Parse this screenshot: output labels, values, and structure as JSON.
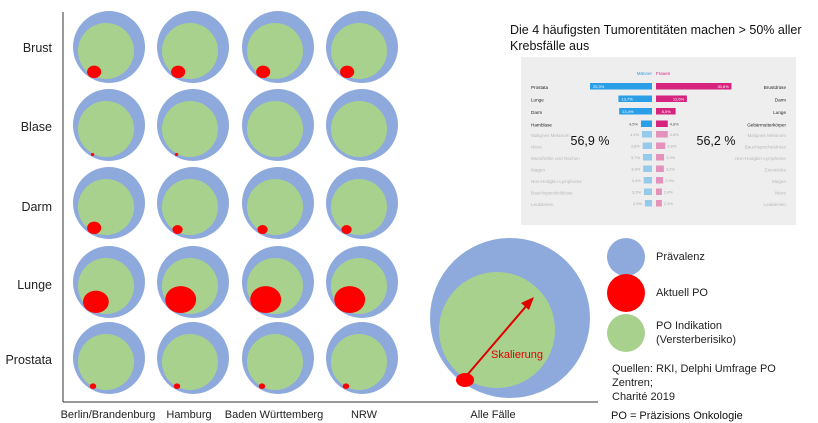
{
  "rows": [
    "Brust",
    "Blase",
    "Darm",
    "Lunge",
    "Prostata"
  ],
  "columns": [
    "Berlin/Brandenburg",
    "Hamburg",
    "Baden Württemberg",
    "NRW"
  ],
  "all_cases_label": "Alle Fälle",
  "scaling_label": "Skalierung",
  "aktuell_po_levels": [
    [
      0.22,
      0.22,
      0.22,
      0.22
    ],
    [
      0.05,
      0.05,
      0.0,
      0.0
    ],
    [
      0.22,
      0.16,
      0.16,
      0.16
    ],
    [
      0.4,
      0.48,
      0.48,
      0.48
    ],
    [
      0.1,
      0.1,
      0.1,
      0.1
    ]
  ],
  "title": "Die 4 häufigsten Tumorentitäten machen > 50% aller Krebsfälle aus",
  "inset": {
    "header_men": "Männer",
    "header_women": "Frauen",
    "men_percent": "56,9 %",
    "women_percent": "56,2 %",
    "rows_top": [
      {
        "left": "Prostata",
        "men": "25,3%",
        "women": "30,8%",
        "right": "Brustdrüse",
        "mv": 25.3,
        "wv": 30.8
      },
      {
        "left": "Lunge",
        "men": "13,7%",
        "women": "12,6%",
        "right": "Darm",
        "mv": 13.7,
        "wv": 12.6
      },
      {
        "left": "Darm",
        "men": "13,4%",
        "women": "8,0%",
        "right": "Lunge",
        "mv": 13.4,
        "wv": 8.0
      },
      {
        "left": "Harnblase",
        "men": "4,5%",
        "women": "4,8%",
        "right": "Gebärmutterkörper",
        "mv": 4.5,
        "wv": 4.8
      }
    ],
    "rows_bottom": [
      {
        "left": "Malignes Melanom",
        "men": "4,1%",
        "women": "4,8%",
        "right": "Malignes Melanom",
        "mv": 4.1,
        "wv": 4.8
      },
      {
        "left": "Niere",
        "men": "3,8%",
        "women": "3,8%",
        "right": "Bauchspeicheldrüse",
        "mv": 3.8,
        "wv": 3.8
      },
      {
        "left": "Mundhöhle und Rachen",
        "men": "3,7%",
        "women": "3,3%",
        "right": "Non-Hodgkin-Lymphome",
        "mv": 3.7,
        "wv": 3.3
      },
      {
        "left": "Magen",
        "men": "3,6%",
        "women": "3,2%",
        "right": "Eierstöcke",
        "mv": 3.6,
        "wv": 3.2
      },
      {
        "left": "Non-Hodgkin-Lymphome",
        "men": "3,4%",
        "women": "2,9%",
        "right": "Magen",
        "mv": 3.4,
        "wv": 2.9
      },
      {
        "left": "Bauchspeicheldrüse",
        "men": "3,3%",
        "women": "2,4%",
        "right": "Niere",
        "mv": 3.3,
        "wv": 2.4
      },
      {
        "left": "Leukämien",
        "men": "2,9%",
        "women": "2,4%",
        "right": "Leukämien",
        "mv": 2.9,
        "wv": 2.4
      }
    ]
  },
  "legend": {
    "praevalenz": "Prävalenz",
    "aktuell_po": "Aktuell PO",
    "po_indikation_1": "PO Indikation",
    "po_indikation_2": "(Versterberisiko)"
  },
  "sources_1": "Quellen: RKI, Delphi Umfrage PO Zentren;",
  "sources_2": "Charité 2019",
  "po_note": "PO = Präzisions Onkologie",
  "colors": {
    "praevalenz": "#8EA9DB",
    "po_indikation": "#A9D18E",
    "aktuell_po": "#FF0000",
    "men": "#2A9FE8",
    "women": "#D6237E"
  }
}
